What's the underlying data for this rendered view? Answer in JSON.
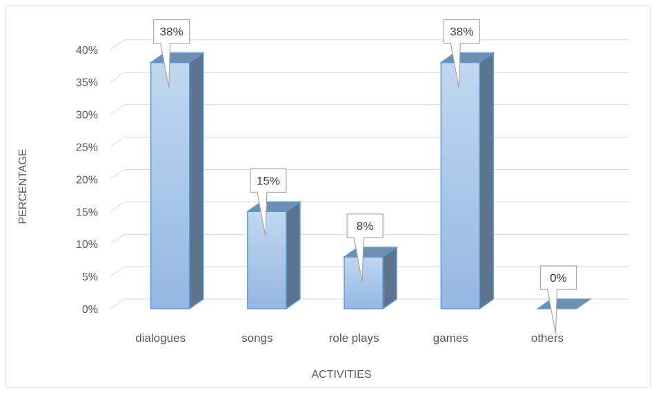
{
  "chart_data": {
    "type": "bar",
    "categories": [
      "dialogues",
      "songs",
      "role plays",
      "games",
      "others"
    ],
    "values": [
      38,
      15,
      8,
      38,
      0
    ],
    "data_labels": [
      "38%",
      "15%",
      "8%",
      "38%",
      "0%"
    ],
    "xlabel": "ACTIVITIES",
    "ylabel": "PERCENTAGE",
    "ylim": [
      0,
      40
    ],
    "ytick_values": [
      0,
      5,
      10,
      15,
      20,
      25,
      30,
      35,
      40
    ],
    "ytick_labels": [
      "0%",
      "5%",
      "10%",
      "15%",
      "20%",
      "25%",
      "30%",
      "35%",
      "40%"
    ],
    "grid": true,
    "legend": "none",
    "style": "3d-column",
    "colors": {
      "bar_front_top": "#c2d7ef",
      "bar_front_bottom": "#93b7e3",
      "bar_side": "#5b7590",
      "bar_top": "#6f8fae",
      "bar_edge": "#5b9bd5",
      "grid": "#d9d9d9",
      "text": "#595959"
    }
  }
}
